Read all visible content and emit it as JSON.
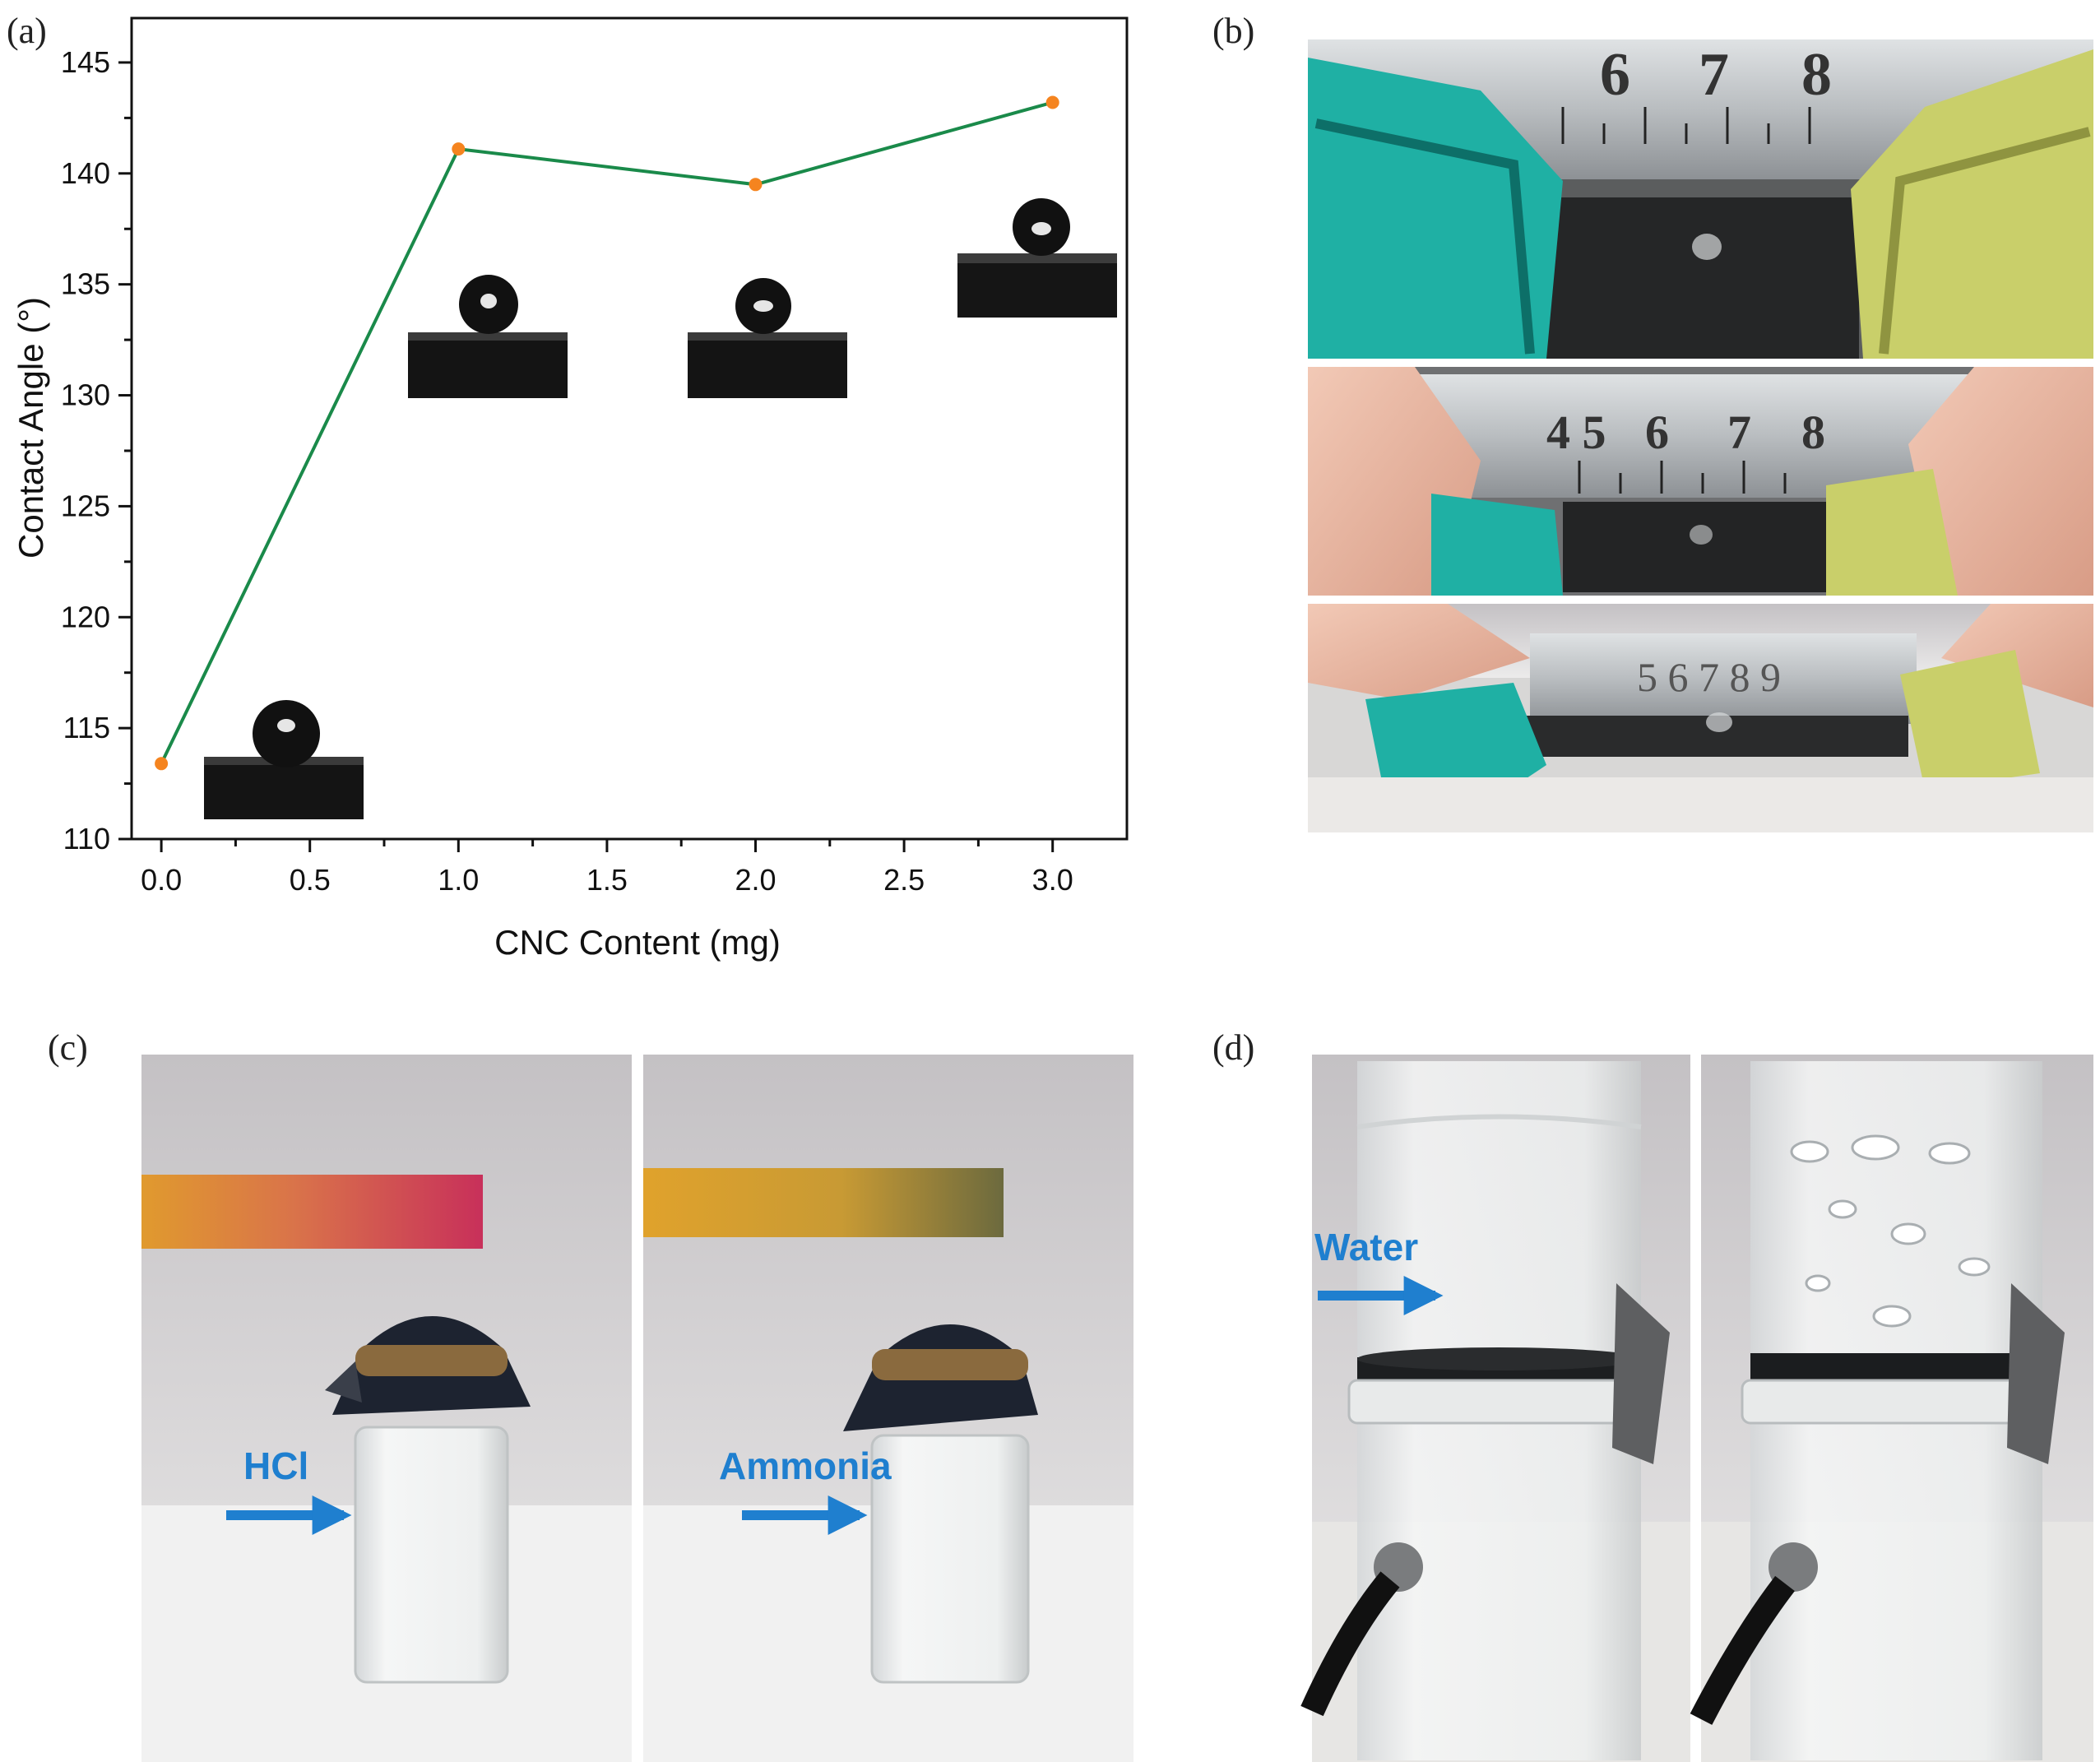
{
  "panels": {
    "a": "(a)",
    "b": "(b)",
    "c": "(c)",
    "d": "(d)"
  },
  "chart_data": {
    "type": "line",
    "xlabel": "CNC Content (mg)",
    "ylabel": "Contact Angle (°)",
    "xlim": [
      -0.1,
      3.25
    ],
    "ylim": [
      110,
      147
    ],
    "xticks": [
      0.0,
      0.5,
      1.0,
      1.5,
      2.0,
      2.5,
      3.0
    ],
    "xtick_labels": [
      "0.0",
      "0.5",
      "1.0",
      "1.5",
      "2.0",
      "2.5",
      "3.0"
    ],
    "yticks": [
      110,
      115,
      120,
      125,
      130,
      135,
      140,
      145
    ],
    "ytick_labels": [
      "110",
      "115",
      "120",
      "125",
      "130",
      "135",
      "140",
      "145"
    ],
    "grid": false,
    "series": [
      {
        "x": [
          0.0,
          1.0,
          2.0,
          3.0
        ],
        "y": [
          113.4,
          141.1,
          139.5,
          143.2
        ]
      }
    ],
    "colors": {
      "line": "#1a8a4a",
      "marker": "#f5841f"
    }
  },
  "photo_labels": {
    "hcl": "HCl",
    "ammonia": "Ammonia",
    "water": "Water"
  },
  "colors": {
    "annotation": "#1f7fcf"
  }
}
